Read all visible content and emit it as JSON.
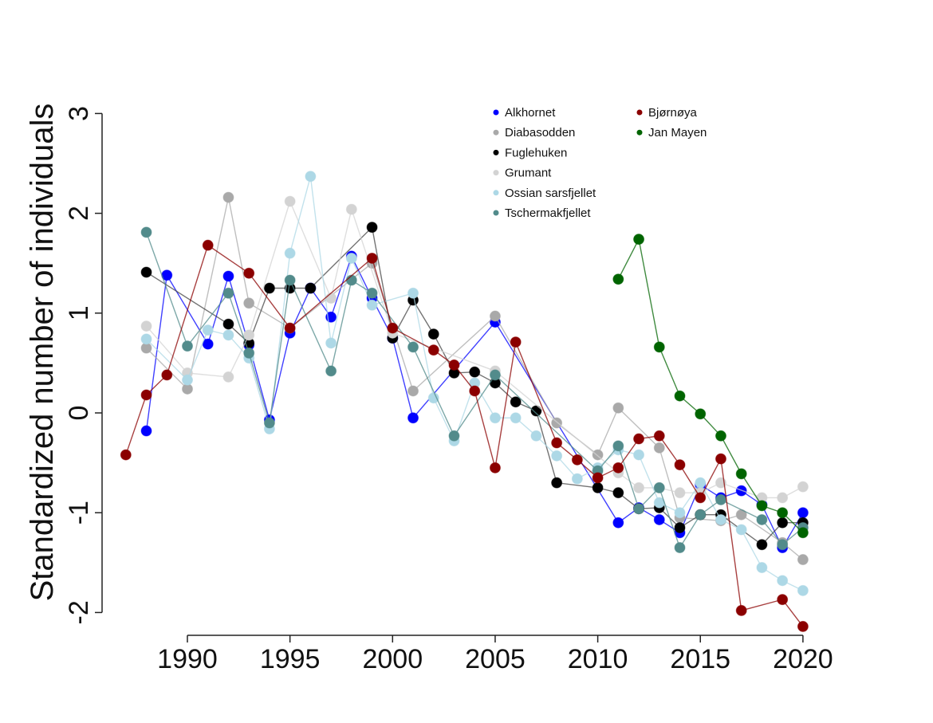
{
  "chart_data": {
    "type": "line",
    "title": "",
    "xlabel": "",
    "ylabel": "Standardized number of individuals",
    "xlim": [
      1986.5,
      2020.5
    ],
    "ylim": [
      -2.2,
      3
    ],
    "x_ticks": [
      "1990",
      "1995",
      "2000",
      "2005",
      "2010",
      "2015",
      "2020"
    ],
    "y_ticks": [
      "-2",
      "-1",
      "0",
      "1",
      "2",
      "3"
    ],
    "grid": false,
    "legend_position": "top-right",
    "series": [
      {
        "name": "Alkhornet",
        "color": "#0000ff",
        "points": [
          [
            1988,
            -0.18
          ],
          [
            1989,
            1.38
          ],
          [
            1991,
            0.69
          ],
          [
            1992,
            1.37
          ],
          [
            1993,
            0.68
          ],
          [
            1994,
            -0.07
          ],
          [
            1995,
            0.8
          ],
          [
            1996,
            1.25
          ],
          [
            1997,
            0.96
          ],
          [
            1998,
            1.57
          ],
          [
            1999,
            1.15
          ],
          [
            2000,
            0.75
          ],
          [
            2001,
            -0.05
          ],
          [
            2005,
            0.91
          ],
          [
            2011,
            -1.1
          ],
          [
            2012,
            -0.95
          ],
          [
            2013,
            -1.07
          ],
          [
            2014,
            -1.2
          ],
          [
            2015,
            -0.72
          ],
          [
            2016,
            -0.85
          ],
          [
            2017,
            -0.78
          ],
          [
            2018,
            -0.92
          ],
          [
            2019,
            -1.35
          ],
          [
            2020,
            -1.0
          ]
        ]
      },
      {
        "name": "Diabasodden",
        "color": "#a9a9a9",
        "points": [
          [
            1988,
            0.65
          ],
          [
            1990,
            0.24
          ],
          [
            1992,
            2.16
          ],
          [
            1993,
            1.1
          ],
          [
            1995,
            0.85
          ],
          [
            1999,
            1.5
          ],
          [
            2001,
            0.22
          ],
          [
            2005,
            0.97
          ],
          [
            2008,
            -0.1
          ],
          [
            2010,
            -0.42
          ],
          [
            2011,
            0.05
          ],
          [
            2013,
            -0.35
          ],
          [
            2014,
            -1.05
          ],
          [
            2016,
            -1.08
          ],
          [
            2017,
            -1.02
          ],
          [
            2019,
            -1.3
          ],
          [
            2020,
            -1.47
          ]
        ]
      },
      {
        "name": "Fuglehuken",
        "color": "#000000",
        "points": [
          [
            1988,
            1.41
          ],
          [
            1992,
            0.89
          ],
          [
            1993,
            0.7
          ],
          [
            1994,
            1.25
          ],
          [
            1995,
            1.25
          ],
          [
            1996,
            1.25
          ],
          [
            1999,
            1.86
          ],
          [
            2000,
            0.75
          ],
          [
            2001,
            1.13
          ],
          [
            2002,
            0.79
          ],
          [
            2003,
            0.4
          ],
          [
            2004,
            0.41
          ],
          [
            2005,
            0.3
          ],
          [
            2006,
            0.11
          ],
          [
            2007,
            0.02
          ],
          [
            2008,
            -0.7
          ],
          [
            2010,
            -0.75
          ],
          [
            2011,
            -0.8
          ],
          [
            2012,
            -0.96
          ],
          [
            2013,
            -0.95
          ],
          [
            2014,
            -1.15
          ],
          [
            2015,
            -1.02
          ],
          [
            2016,
            -1.02
          ],
          [
            2018,
            -1.32
          ],
          [
            2019,
            -1.1
          ],
          [
            2020,
            -1.1
          ]
        ]
      },
      {
        "name": "Grumant",
        "color": "#d3d3d3",
        "points": [
          [
            1988,
            0.87
          ],
          [
            1990,
            0.4
          ],
          [
            1992,
            0.36
          ],
          [
            1993,
            0.78
          ],
          [
            1995,
            2.12
          ],
          [
            1997,
            1.15
          ],
          [
            1998,
            2.04
          ],
          [
            2000,
            0.8
          ],
          [
            2005,
            0.42
          ],
          [
            2011,
            -0.6
          ],
          [
            2012,
            -0.75
          ],
          [
            2013,
            -0.75
          ],
          [
            2014,
            -0.8
          ],
          [
            2015,
            -0.8
          ],
          [
            2016,
            -0.7
          ],
          [
            2018,
            -0.85
          ],
          [
            2019,
            -0.85
          ],
          [
            2020,
            -0.74
          ]
        ]
      },
      {
        "name": "Ossian sarsfjellet",
        "color": "#add8e6",
        "points": [
          [
            1988,
            0.74
          ],
          [
            1990,
            0.33
          ],
          [
            1991,
            0.83
          ],
          [
            1992,
            0.78
          ],
          [
            1993,
            0.55
          ],
          [
            1994,
            -0.16
          ],
          [
            1995,
            1.6
          ],
          [
            1996,
            2.37
          ],
          [
            1997,
            0.7
          ],
          [
            1998,
            1.55
          ],
          [
            1999,
            1.08
          ],
          [
            2001,
            1.2
          ],
          [
            2002,
            0.15
          ],
          [
            2003,
            -0.28
          ],
          [
            2004,
            0.3
          ],
          [
            2005,
            -0.05
          ],
          [
            2006,
            -0.05
          ],
          [
            2007,
            -0.23
          ],
          [
            2008,
            -0.43
          ],
          [
            2009,
            -0.66
          ],
          [
            2010,
            -0.55
          ],
          [
            2011,
            -0.37
          ],
          [
            2012,
            -0.42
          ],
          [
            2013,
            -0.9
          ],
          [
            2014,
            -1.0
          ],
          [
            2015,
            -0.7
          ],
          [
            2016,
            -1.07
          ],
          [
            2017,
            -1.17
          ],
          [
            2018,
            -1.55
          ],
          [
            2019,
            -1.68
          ],
          [
            2020,
            -1.78
          ]
        ]
      },
      {
        "name": "Tschermakfjellet",
        "color": "#528b8b",
        "points": [
          [
            1988,
            1.81
          ],
          [
            1990,
            0.67
          ],
          [
            1992,
            1.2
          ],
          [
            1993,
            0.6
          ],
          [
            1994,
            -0.1
          ],
          [
            1995,
            1.33
          ],
          [
            1997,
            0.42
          ],
          [
            1998,
            1.33
          ],
          [
            1999,
            1.2
          ],
          [
            2001,
            0.66
          ],
          [
            2003,
            -0.23
          ],
          [
            2005,
            0.38
          ],
          [
            2010,
            -0.58
          ],
          [
            2011,
            -0.33
          ],
          [
            2012,
            -0.96
          ],
          [
            2013,
            -0.75
          ],
          [
            2014,
            -1.35
          ],
          [
            2015,
            -1.02
          ],
          [
            2016,
            -0.87
          ],
          [
            2018,
            -1.07
          ],
          [
            2019,
            -1.32
          ],
          [
            2020,
            -1.15
          ]
        ]
      },
      {
        "name": "Bjørnøya",
        "color": "#8b0000",
        "points": [
          [
            1987,
            -0.42
          ],
          [
            1988,
            0.18
          ],
          [
            1989,
            0.38
          ],
          [
            1991,
            1.68
          ],
          [
            1993,
            1.4
          ],
          [
            1995,
            0.85
          ],
          [
            1999,
            1.55
          ],
          [
            2000,
            0.85
          ],
          [
            2002,
            0.63
          ],
          [
            2003,
            0.48
          ],
          [
            2004,
            0.22
          ],
          [
            2005,
            -0.55
          ],
          [
            2006,
            0.71
          ],
          [
            2008,
            -0.3
          ],
          [
            2009,
            -0.47
          ],
          [
            2010,
            -0.65
          ],
          [
            2011,
            -0.55
          ],
          [
            2012,
            -0.26
          ],
          [
            2013,
            -0.23
          ],
          [
            2014,
            -0.52
          ],
          [
            2015,
            -0.85
          ],
          [
            2016,
            -0.46
          ],
          [
            2017,
            -1.98
          ],
          [
            2019,
            -1.87
          ],
          [
            2020,
            -2.14
          ]
        ]
      },
      {
        "name": "Jan Mayen",
        "color": "#006400",
        "points": [
          [
            2011,
            1.34
          ],
          [
            2012,
            1.74
          ],
          [
            2013,
            0.66
          ],
          [
            2014,
            0.17
          ],
          [
            2015,
            -0.01
          ],
          [
            2016,
            -0.23
          ],
          [
            2017,
            -0.61
          ],
          [
            2018,
            -0.93
          ],
          [
            2019,
            -1.0
          ],
          [
            2020,
            -1.2
          ]
        ]
      }
    ]
  }
}
